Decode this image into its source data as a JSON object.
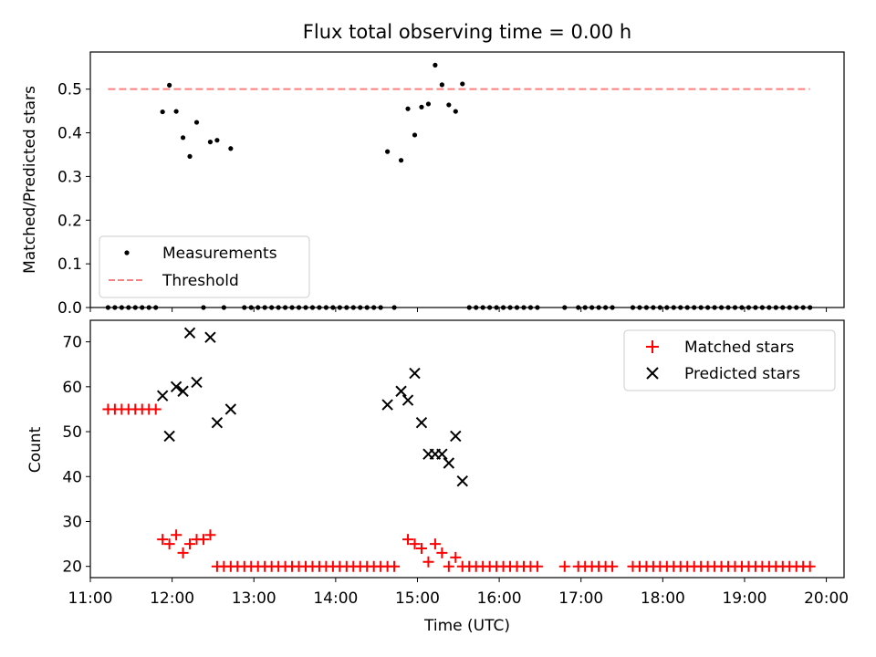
{
  "title": "Flux total observing time = 0.00 h",
  "colors": {
    "measurements": "#000000",
    "threshold": "#ff7f7f",
    "matched": "#ff0000",
    "predicted": "#000000"
  },
  "chart_data": [
    {
      "type": "scatter",
      "title": "Flux total observing time = 0.00 h",
      "xlabel": "",
      "ylabel": "Matched/Predicted stars",
      "xlim": [
        "11:00",
        "20:13"
      ],
      "ylim": [
        0,
        0.585
      ],
      "yticks": [
        0.0,
        0.1,
        0.2,
        0.3,
        0.4,
        0.5
      ],
      "ytick_labels": [
        "0.0",
        "0.1",
        "0.2",
        "0.3",
        "0.4",
        "0.5"
      ],
      "grid": false,
      "legend": {
        "position": "lower-left",
        "entries": [
          "Measurements",
          "Threshold"
        ]
      },
      "series": [
        {
          "name": "Measurements",
          "marker": "dot",
          "points": [
            [
              "11:13",
              0
            ],
            [
              "11:18",
              0
            ],
            [
              "11:23",
              0
            ],
            [
              "11:28",
              0
            ],
            [
              "11:33",
              0
            ],
            [
              "11:38",
              0
            ],
            [
              "11:43",
              0
            ],
            [
              "11:48",
              0
            ],
            [
              "11:53",
              0.448
            ],
            [
              "11:58",
              0.509
            ],
            [
              "12:03",
              0.449
            ],
            [
              "12:08",
              0.389
            ],
            [
              "12:13",
              0.346
            ],
            [
              "12:18",
              0.424
            ],
            [
              "12:23",
              0
            ],
            [
              "12:28",
              0.379
            ],
            [
              "12:33",
              0.383
            ],
            [
              "12:38",
              0
            ],
            [
              "12:43",
              0.364
            ],
            [
              "12:53",
              0
            ],
            [
              "12:58",
              0
            ],
            [
              "13:03",
              0
            ],
            [
              "13:08",
              0
            ],
            [
              "13:13",
              0
            ],
            [
              "13:18",
              0
            ],
            [
              "13:23",
              0
            ],
            [
              "13:28",
              0
            ],
            [
              "13:33",
              0
            ],
            [
              "13:38",
              0
            ],
            [
              "13:43",
              0
            ],
            [
              "13:48",
              0
            ],
            [
              "13:53",
              0
            ],
            [
              "13:58",
              0
            ],
            [
              "14:03",
              0
            ],
            [
              "14:08",
              0
            ],
            [
              "14:13",
              0
            ],
            [
              "14:18",
              0
            ],
            [
              "14:23",
              0
            ],
            [
              "14:28",
              0
            ],
            [
              "14:33",
              0
            ],
            [
              "14:38",
              0.357
            ],
            [
              "14:43",
              0
            ],
            [
              "14:48",
              0.337
            ],
            [
              "14:53",
              0.455
            ],
            [
              "14:58",
              0.395
            ],
            [
              "15:03",
              0.459
            ],
            [
              "15:08",
              0.466
            ],
            [
              "15:13",
              0.555
            ],
            [
              "15:18",
              0.51
            ],
            [
              "15:23",
              0.464
            ],
            [
              "15:28",
              0.449
            ],
            [
              "15:33",
              0.512
            ],
            [
              "15:38",
              0
            ],
            [
              "15:43",
              0
            ],
            [
              "15:48",
              0
            ],
            [
              "15:53",
              0
            ],
            [
              "15:58",
              0
            ],
            [
              "16:03",
              0
            ],
            [
              "16:08",
              0
            ],
            [
              "16:13",
              0
            ],
            [
              "16:18",
              0
            ],
            [
              "16:23",
              0
            ],
            [
              "16:28",
              0
            ],
            [
              "16:48",
              0
            ],
            [
              "16:58",
              0
            ],
            [
              "17:03",
              0
            ],
            [
              "17:08",
              0
            ],
            [
              "17:13",
              0
            ],
            [
              "17:18",
              0
            ],
            [
              "17:23",
              0
            ],
            [
              "17:38",
              0
            ],
            [
              "17:43",
              0
            ],
            [
              "17:48",
              0
            ],
            [
              "17:53",
              0
            ],
            [
              "17:58",
              0
            ],
            [
              "18:03",
              0
            ],
            [
              "18:08",
              0
            ],
            [
              "18:13",
              0
            ],
            [
              "18:18",
              0
            ],
            [
              "18:23",
              0
            ],
            [
              "18:28",
              0
            ],
            [
              "18:33",
              0
            ],
            [
              "18:38",
              0
            ],
            [
              "18:43",
              0
            ],
            [
              "18:48",
              0
            ],
            [
              "18:53",
              0
            ],
            [
              "18:58",
              0
            ],
            [
              "19:03",
              0
            ],
            [
              "19:08",
              0
            ],
            [
              "19:13",
              0
            ],
            [
              "19:18",
              0
            ],
            [
              "19:23",
              0
            ],
            [
              "19:28",
              0
            ],
            [
              "19:33",
              0
            ],
            [
              "19:38",
              0
            ],
            [
              "19:43",
              0
            ],
            [
              "19:48",
              0
            ]
          ]
        },
        {
          "name": "Threshold",
          "marker": "dashed-line",
          "points": [
            [
              "11:13",
              0.5
            ],
            [
              "19:48",
              0.5
            ]
          ]
        }
      ]
    },
    {
      "type": "scatter",
      "xlabel": "Time (UTC)",
      "ylabel": "Count",
      "xlim": [
        "11:00",
        "20:13"
      ],
      "ylim": [
        17.5,
        74.8
      ],
      "xticks": [
        "11:00",
        "12:00",
        "13:00",
        "14:00",
        "15:00",
        "16:00",
        "17:00",
        "18:00",
        "19:00",
        "20:00"
      ],
      "yticks": [
        20,
        30,
        40,
        50,
        60,
        70
      ],
      "ytick_labels": [
        "20",
        "30",
        "40",
        "50",
        "60",
        "70"
      ],
      "grid": false,
      "legend": {
        "position": "top-right",
        "entries": [
          "Matched stars",
          "Predicted stars"
        ]
      },
      "series": [
        {
          "name": "Matched stars",
          "marker": "plus",
          "points": [
            [
              "11:13",
              55
            ],
            [
              "11:18",
              55
            ],
            [
              "11:23",
              55
            ],
            [
              "11:28",
              55
            ],
            [
              "11:33",
              55
            ],
            [
              "11:38",
              55
            ],
            [
              "11:43",
              55
            ],
            [
              "11:48",
              55
            ],
            [
              "11:53",
              26
            ],
            [
              "11:58",
              25
            ],
            [
              "12:03",
              27
            ],
            [
              "12:08",
              23
            ],
            [
              "12:13",
              25
            ],
            [
              "12:18",
              26
            ],
            [
              "12:23",
              26
            ],
            [
              "12:28",
              27
            ],
            [
              "12:33",
              20
            ],
            [
              "12:38",
              20
            ],
            [
              "12:43",
              20
            ],
            [
              "12:48",
              20
            ],
            [
              "12:53",
              20
            ],
            [
              "12:58",
              20
            ],
            [
              "13:03",
              20
            ],
            [
              "13:08",
              20
            ],
            [
              "13:13",
              20
            ],
            [
              "13:18",
              20
            ],
            [
              "13:23",
              20
            ],
            [
              "13:28",
              20
            ],
            [
              "13:33",
              20
            ],
            [
              "13:38",
              20
            ],
            [
              "13:43",
              20
            ],
            [
              "13:48",
              20
            ],
            [
              "13:53",
              20
            ],
            [
              "13:58",
              20
            ],
            [
              "14:03",
              20
            ],
            [
              "14:08",
              20
            ],
            [
              "14:13",
              20
            ],
            [
              "14:18",
              20
            ],
            [
              "14:23",
              20
            ],
            [
              "14:28",
              20
            ],
            [
              "14:33",
              20
            ],
            [
              "14:38",
              20
            ],
            [
              "14:43",
              20
            ],
            [
              "14:53",
              26
            ],
            [
              "14:58",
              25
            ],
            [
              "15:03",
              24
            ],
            [
              "15:08",
              21
            ],
            [
              "15:13",
              25
            ],
            [
              "15:18",
              23
            ],
            [
              "15:23",
              20
            ],
            [
              "15:28",
              22
            ],
            [
              "15:33",
              20
            ],
            [
              "15:38",
              20
            ],
            [
              "15:43",
              20
            ],
            [
              "15:48",
              20
            ],
            [
              "15:53",
              20
            ],
            [
              "15:58",
              20
            ],
            [
              "16:03",
              20
            ],
            [
              "16:08",
              20
            ],
            [
              "16:13",
              20
            ],
            [
              "16:18",
              20
            ],
            [
              "16:23",
              20
            ],
            [
              "16:28",
              20
            ],
            [
              "16:48",
              20
            ],
            [
              "16:58",
              20
            ],
            [
              "17:03",
              20
            ],
            [
              "17:08",
              20
            ],
            [
              "17:13",
              20
            ],
            [
              "17:18",
              20
            ],
            [
              "17:23",
              20
            ],
            [
              "17:38",
              20
            ],
            [
              "17:43",
              20
            ],
            [
              "17:48",
              20
            ],
            [
              "17:53",
              20
            ],
            [
              "17:58",
              20
            ],
            [
              "18:03",
              20
            ],
            [
              "18:08",
              20
            ],
            [
              "18:13",
              20
            ],
            [
              "18:18",
              20
            ],
            [
              "18:23",
              20
            ],
            [
              "18:28",
              20
            ],
            [
              "18:33",
              20
            ],
            [
              "18:38",
              20
            ],
            [
              "18:43",
              20
            ],
            [
              "18:48",
              20
            ],
            [
              "18:53",
              20
            ],
            [
              "18:58",
              20
            ],
            [
              "19:03",
              20
            ],
            [
              "19:08",
              20
            ],
            [
              "19:13",
              20
            ],
            [
              "19:18",
              20
            ],
            [
              "19:23",
              20
            ],
            [
              "19:28",
              20
            ],
            [
              "19:33",
              20
            ],
            [
              "19:38",
              20
            ],
            [
              "19:43",
              20
            ],
            [
              "19:48",
              20
            ]
          ]
        },
        {
          "name": "Predicted stars",
          "marker": "x",
          "points": [
            [
              "11:53",
              58
            ],
            [
              "11:58",
              49
            ],
            [
              "12:03",
              60
            ],
            [
              "12:08",
              59
            ],
            [
              "12:13",
              72
            ],
            [
              "12:18",
              61
            ],
            [
              "12:28",
              71
            ],
            [
              "12:33",
              52
            ],
            [
              "12:43",
              55
            ],
            [
              "14:38",
              56
            ],
            [
              "14:48",
              59
            ],
            [
              "14:53",
              57
            ],
            [
              "14:58",
              63
            ],
            [
              "15:03",
              52
            ],
            [
              "15:08",
              45
            ],
            [
              "15:13",
              45
            ],
            [
              "15:18",
              45
            ],
            [
              "15:23",
              43
            ],
            [
              "15:28",
              49
            ],
            [
              "15:33",
              39
            ]
          ]
        }
      ]
    }
  ]
}
